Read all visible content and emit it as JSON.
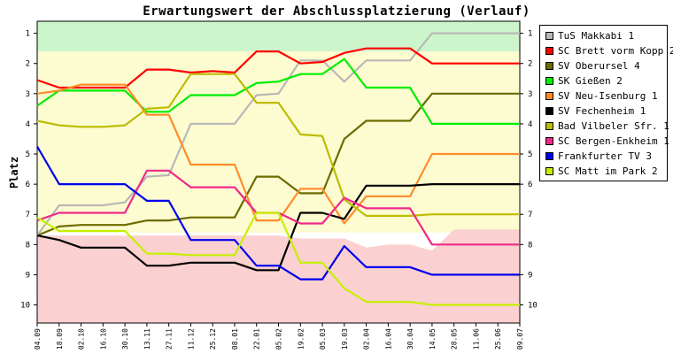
{
  "chart_data": {
    "type": "line",
    "title": "Erwartungswert der Abschlussplatzierung (Verlauf)",
    "ylabel": "Platz",
    "xlabel": "",
    "ylim": [
      1,
      10
    ],
    "y_inverted": true,
    "y_ticks": [
      "1",
      "2",
      "3",
      "4",
      "5",
      "6",
      "7",
      "8",
      "9",
      "10"
    ],
    "x": [
      "04.09",
      "18.09",
      "02.10",
      "16.10",
      "30.10",
      "13.11",
      "27.11",
      "11.12",
      "25.12",
      "08.01",
      "22.01",
      "05.02",
      "19.02",
      "05.03",
      "19.03",
      "02.04",
      "16.04",
      "30.04",
      "14.05",
      "28.05",
      "11.06",
      "25.06",
      "09.07"
    ],
    "bands": [
      {
        "name": "promotion",
        "color": "#ccf5cc",
        "from": 0.6,
        "to": 1.6
      },
      {
        "name": "midfield",
        "color": "#fdfcd0",
        "from": 1.6,
        "to": 7.6
      },
      {
        "name": "relegation",
        "color": "#fbd0d0",
        "from": 7.6,
        "to": 10.6,
        "upper_edge": [
          7.7,
          7.7,
          7.7,
          7.7,
          7.7,
          7.7,
          7.7,
          7.7,
          7.7,
          7.7,
          7.7,
          7.7,
          7.8,
          7.8,
          7.8,
          8.1,
          8.0,
          8.0,
          8.2,
          7.5,
          7.5,
          7.5,
          7.5
        ]
      },
      {
        "name": "promotion-edge",
        "color": "#ccf5cc",
        "from": 0.6,
        "to": 1.55
      }
    ],
    "legend_position": "right",
    "series": [
      {
        "name": "TuS Makkabi 1",
        "color": "#b8b8b8",
        "values": [
          7.7,
          6.7,
          6.7,
          6.7,
          6.6,
          5.75,
          5.7,
          4.0,
          4.0,
          4.0,
          3.05,
          3.0,
          1.9,
          1.9,
          2.6,
          1.9,
          1.9,
          1.9,
          1.0,
          1.0,
          1.0,
          1.0,
          1.0
        ]
      },
      {
        "name": "SC Brett vorm Kopp 2",
        "color": "#ff0000",
        "values": [
          2.55,
          2.8,
          2.8,
          2.8,
          2.8,
          2.2,
          2.2,
          2.3,
          2.25,
          2.3,
          1.6,
          1.6,
          2.0,
          1.95,
          1.65,
          1.5,
          1.5,
          1.5,
          2.0,
          2.0,
          2.0,
          2.0,
          2.0
        ]
      },
      {
        "name": "SV Oberursel 4",
        "color": "#6b6b00",
        "values": [
          7.7,
          7.4,
          7.35,
          7.35,
          7.35,
          7.2,
          7.2,
          7.1,
          7.1,
          7.1,
          5.75,
          5.75,
          6.3,
          6.3,
          4.5,
          3.9,
          3.9,
          3.9,
          3.0,
          3.0,
          3.0,
          3.0,
          3.0
        ]
      },
      {
        "name": "SK Gießen 2",
        "color": "#00ee00",
        "values": [
          3.4,
          2.9,
          2.9,
          2.9,
          2.9,
          3.6,
          3.6,
          3.05,
          3.05,
          3.05,
          2.65,
          2.6,
          2.35,
          2.35,
          1.85,
          2.8,
          2.8,
          2.8,
          4.0,
          4.0,
          4.0,
          4.0,
          4.0
        ]
      },
      {
        "name": "SV Neu-Isenburg 1",
        "color": "#ff8c2a",
        "values": [
          3.0,
          2.9,
          2.7,
          2.7,
          2.7,
          3.7,
          3.7,
          5.35,
          5.35,
          5.35,
          7.2,
          7.2,
          6.15,
          6.15,
          7.3,
          6.4,
          6.4,
          6.4,
          5.0,
          5.0,
          5.0,
          5.0,
          5.0
        ]
      },
      {
        "name": "SV Fechenheim 1",
        "color": "#000000",
        "values": [
          7.7,
          7.85,
          8.1,
          8.1,
          8.1,
          8.7,
          8.7,
          8.6,
          8.6,
          8.6,
          8.85,
          8.85,
          6.95,
          6.95,
          7.15,
          6.05,
          6.05,
          6.05,
          6.0,
          6.0,
          6.0,
          6.0,
          6.0
        ]
      },
      {
        "name": "Bad Vilbeler Sfr. 1",
        "color": "#bcbc00",
        "values": [
          3.9,
          4.05,
          4.1,
          4.1,
          4.05,
          3.5,
          3.45,
          2.35,
          2.35,
          2.35,
          3.3,
          3.3,
          4.35,
          4.4,
          6.5,
          7.05,
          7.05,
          7.05,
          7.0,
          7.0,
          7.0,
          7.0,
          7.0
        ]
      },
      {
        "name": "SC Bergen-Enkheim 1",
        "color": "#ee2a8a",
        "values": [
          7.2,
          6.95,
          6.95,
          6.95,
          6.95,
          5.55,
          5.55,
          6.1,
          6.1,
          6.1,
          6.95,
          6.95,
          7.3,
          7.3,
          6.45,
          6.8,
          6.8,
          6.8,
          8.0,
          8.0,
          8.0,
          8.0,
          8.0
        ]
      },
      {
        "name": "Frankfurter TV 3",
        "color": "#0000ee",
        "values": [
          4.75,
          6.0,
          6.0,
          6.0,
          6.0,
          6.55,
          6.55,
          7.85,
          7.85,
          7.85,
          8.7,
          8.7,
          9.15,
          9.15,
          8.05,
          8.75,
          8.75,
          8.75,
          9.0,
          9.0,
          9.0,
          9.0,
          9.0
        ]
      },
      {
        "name": "SC Matt im Park 2",
        "color": "#c6f000",
        "values": [
          7.1,
          7.55,
          7.55,
          7.55,
          7.55,
          8.3,
          8.3,
          8.35,
          8.35,
          8.35,
          6.95,
          6.95,
          8.6,
          8.6,
          9.45,
          9.9,
          9.9,
          9.9,
          10.0,
          10.0,
          10.0,
          10.0,
          10.0
        ]
      }
    ]
  }
}
